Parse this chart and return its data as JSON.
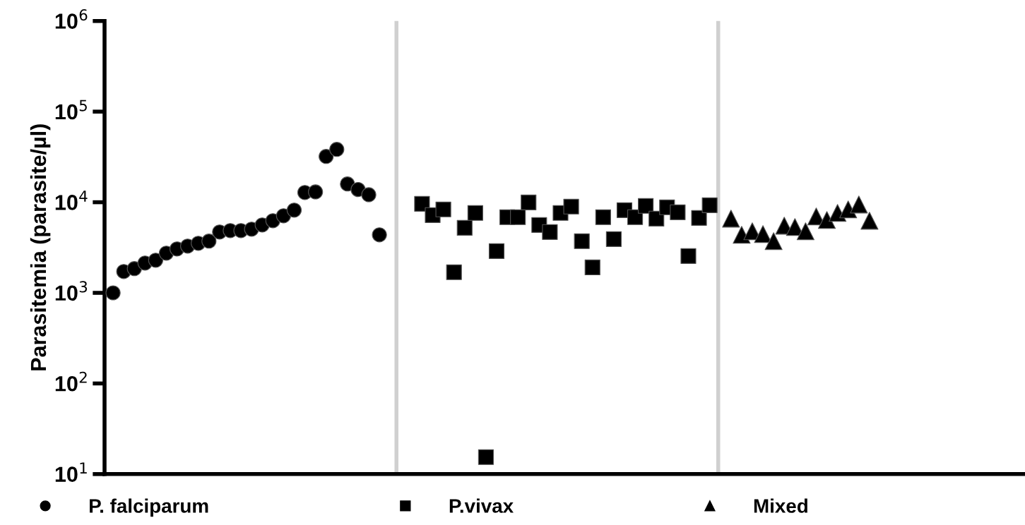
{
  "chart_data": {
    "type": "scatter",
    "ylabel": "Parasitemia (parasite/µl)",
    "log": "y",
    "ylim": [
      10,
      1000000
    ],
    "yticks": [
      {
        "value": 10,
        "label": "10$^{1}$"
      },
      {
        "value": 100,
        "label": "10$^{2}$"
      },
      {
        "value": 1000,
        "label": "10$^{3}$"
      },
      {
        "value": 10000,
        "label": "10$^{4}$"
      },
      {
        "value": 100000,
        "label": "10$^{5}$"
      },
      {
        "value": 1000000,
        "label": "10$^{6}$"
      }
    ],
    "categories": [
      null,
      null,
      null,
      null,
      null,
      null,
      null,
      null,
      null,
      null,
      null,
      null,
      null,
      null,
      null,
      null,
      null,
      null,
      null,
      null,
      null,
      null,
      null,
      null,
      null,
      null,
      null,
      null,
      null,
      null,
      null,
      null,
      null,
      null,
      null,
      null,
      null,
      null,
      null,
      null,
      null,
      null,
      null,
      null,
      null,
      null,
      null,
      null,
      null,
      null,
      null,
      null,
      null,
      null,
      null,
      null,
      null,
      null,
      null,
      null,
      null,
      null,
      null,
      null,
      null,
      null,
      null,
      null,
      null,
      null,
      null,
      null,
      null,
      null,
      null,
      null,
      null,
      null,
      null,
      null,
      null,
      null,
      null,
      null,
      null,
      null
    ],
    "tick_labels": "y",
    "grid": false,
    "legend": "bottom",
    "series": [
      {
        "name": "P. falciparum",
        "color": "#000000",
        "marker": "circle",
        "values": [
          1000,
          1720,
          1850,
          2130,
          2290,
          2740,
          3050,
          3280,
          3520,
          3720,
          4690,
          4860,
          4860,
          5040,
          5610,
          6250,
          7080,
          8180,
          12800,
          13000,
          32000,
          38300,
          15900,
          13800,
          12100,
          4370,
          null,
          null,
          null,
          null,
          null,
          null,
          null,
          null,
          null,
          null,
          null,
          null,
          null,
          null,
          null,
          null,
          null,
          null,
          null,
          null,
          null,
          null,
          null,
          null,
          null,
          null,
          null,
          null,
          null,
          null,
          null,
          null,
          null,
          null,
          null,
          null,
          null,
          null,
          null,
          null,
          null,
          null,
          null,
          null,
          null,
          null,
          null,
          null,
          null,
          null,
          null,
          null,
          null,
          null,
          null,
          null,
          null,
          null,
          null,
          null
        ]
      },
      {
        "name": "P.vivax",
        "color": "#000000",
        "marker": "square",
        "values": [
          null,
          null,
          null,
          null,
          null,
          null,
          null,
          null,
          null,
          null,
          null,
          null,
          null,
          null,
          null,
          null,
          null,
          null,
          null,
          null,
          null,
          null,
          null,
          null,
          null,
          null,
          null,
          null,
          null,
          9610,
          7210,
          8330,
          1690,
          5220,
          7620,
          15.4,
          2890,
          6840,
          6840,
          9960,
          5610,
          4690,
          7620,
          8950,
          3720,
          1910,
          6840,
          3920,
          8180,
          6840,
          9120,
          6590,
          8790,
          7750,
          2550,
          6710,
          9270,
          null,
          null,
          null,
          null,
          null,
          null,
          null,
          null,
          null,
          null,
          null,
          null,
          null,
          null,
          null,
          null,
          null,
          null,
          null,
          null,
          null,
          null,
          null,
          null,
          null,
          null,
          null,
          null,
          null
        ]
      },
      {
        "name": "Mixed",
        "color": "#000000",
        "marker": "triangle",
        "values": [
          null,
          null,
          null,
          null,
          null,
          null,
          null,
          null,
          null,
          null,
          null,
          null,
          null,
          null,
          null,
          null,
          null,
          null,
          null,
          null,
          null,
          null,
          null,
          null,
          null,
          null,
          null,
          null,
          null,
          null,
          null,
          null,
          null,
          null,
          null,
          null,
          null,
          null,
          null,
          null,
          null,
          null,
          null,
          null,
          null,
          null,
          null,
          null,
          null,
          null,
          null,
          null,
          null,
          null,
          null,
          null,
          null,
          null,
          6590,
          4370,
          4780,
          4450,
          3720,
          5510,
          5320,
          4780,
          6970,
          6370,
          7620,
          8330,
          9440,
          6250,
          null,
          null,
          null,
          null,
          null,
          null,
          null,
          null,
          null,
          null,
          null,
          null,
          null,
          null
        ]
      }
    ]
  }
}
